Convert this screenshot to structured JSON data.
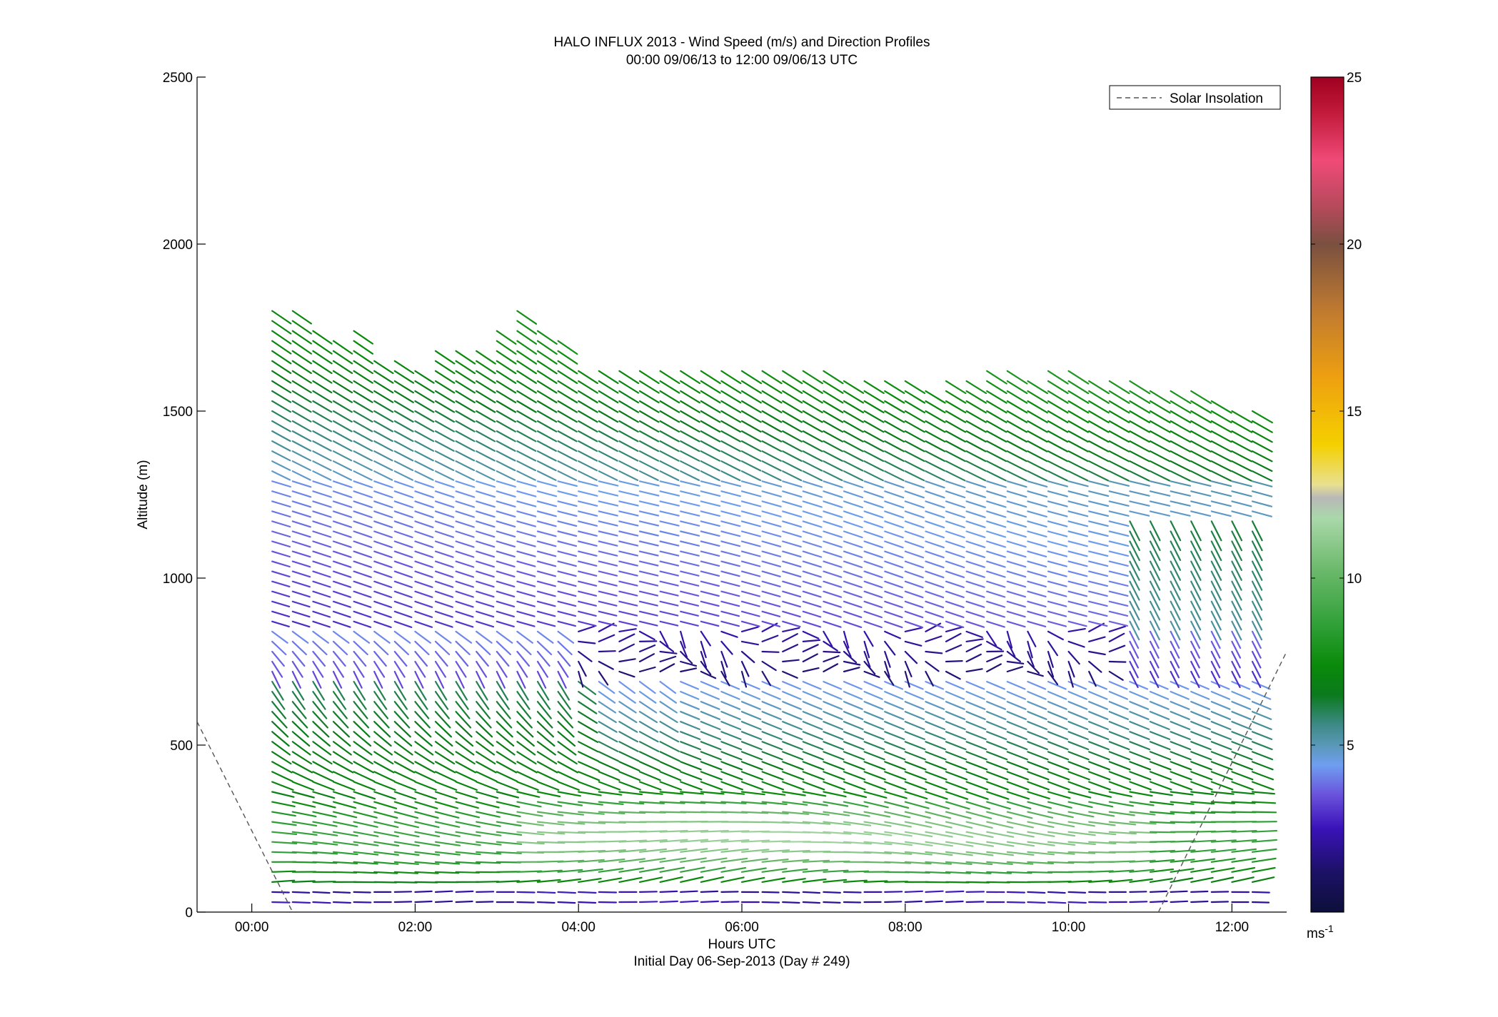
{
  "chart_data": {
    "type": "quiver",
    "title": "HALO INFLUX 2013 - Wind Speed (m/s) and Direction Profiles",
    "subtitle": "00:00 09/06/13 to 12:00 09/06/13  UTC",
    "xlabel": "Hours UTC",
    "xlabel2": "Initial Day 06-Sep-2013 (Day # 249)",
    "ylabel": "Altitude (m)",
    "xlim": [
      -0.67,
      12.67
    ],
    "ylim": [
      0,
      2500
    ],
    "x_ticks": [
      0,
      2,
      4,
      6,
      8,
      10,
      12
    ],
    "x_tick_labels": [
      "00:00",
      "02:00",
      "04:00",
      "06:00",
      "08:00",
      "10:00",
      "12:00"
    ],
    "y_ticks": [
      0,
      500,
      1000,
      1500,
      2000,
      2500
    ],
    "y_tick_labels": [
      "0",
      "500",
      "1000",
      "1500",
      "2000",
      "2500"
    ],
    "legend": {
      "entries": [
        "Solar Insolation"
      ],
      "placement": "top-right"
    },
    "solar_insolation": {
      "name": "Solar Insolation",
      "style": "dashed",
      "segments": [
        {
          "x": [
            -0.67,
            0.5
          ],
          "y": [
            570,
            0
          ]
        },
        {
          "x": [
            11.1,
            12.67
          ],
          "y": [
            0,
            780
          ]
        }
      ]
    },
    "colorbar": {
      "range": [
        0,
        25
      ],
      "ticks": [
        5,
        10,
        15,
        20,
        25
      ],
      "tick_labels": [
        "5",
        "10",
        "15",
        "20",
        "25"
      ],
      "units_label": "ms",
      "units_exponent": "-1",
      "stops": [
        {
          "v": 0,
          "color": "#0d0f3a"
        },
        {
          "v": 1.2,
          "color": "#1c1166"
        },
        {
          "v": 2.5,
          "color": "#3a12b8"
        },
        {
          "v": 3.5,
          "color": "#6a52dc"
        },
        {
          "v": 4.4,
          "color": "#6f9ef0"
        },
        {
          "v": 5.0,
          "color": "#5a98b6"
        },
        {
          "v": 5.6,
          "color": "#3d8a88"
        },
        {
          "v": 6.5,
          "color": "#0b7a1c"
        },
        {
          "v": 7.4,
          "color": "#0a8a0a"
        },
        {
          "v": 8.6,
          "color": "#30a038"
        },
        {
          "v": 10.2,
          "color": "#6ab86a"
        },
        {
          "v": 11.8,
          "color": "#aad8aa"
        },
        {
          "v": 12.4,
          "color": "#b8b8b8"
        },
        {
          "v": 12.8,
          "color": "#e8e090"
        },
        {
          "v": 14.0,
          "color": "#f5d000"
        },
        {
          "v": 16.0,
          "color": "#eea010"
        },
        {
          "v": 18.0,
          "color": "#c07a30"
        },
        {
          "v": 20.0,
          "color": "#7a5040"
        },
        {
          "v": 21.0,
          "color": "#b04a58"
        },
        {
          "v": 22.5,
          "color": "#f04a78"
        },
        {
          "v": 24.0,
          "color": "#c01838"
        },
        {
          "v": 25.0,
          "color": "#a00020"
        }
      ]
    },
    "profile_times_hours": [
      0.25,
      0.5,
      0.75,
      1.0,
      1.25,
      1.5,
      1.75,
      2.0,
      2.25,
      2.5,
      2.75,
      3.0,
      3.25,
      3.5,
      3.75,
      4.0,
      4.25,
      4.5,
      4.75,
      5.0,
      5.25,
      5.5,
      5.75,
      6.0,
      6.25,
      6.5,
      6.75,
      7.0,
      7.25,
      7.5,
      7.75,
      8.0,
      8.25,
      8.5,
      8.75,
      9.0,
      9.25,
      9.5,
      9.75,
      10.0,
      10.25,
      10.5,
      10.75,
      11.0,
      11.25,
      11.5,
      11.75,
      12.0,
      12.25
    ],
    "profile_top_altitudes_m": [
      1810,
      1810,
      1740,
      1720,
      1740,
      1650,
      1650,
      1640,
      1700,
      1690,
      1680,
      1740,
      1810,
      1740,
      1730,
      1640,
      1630,
      1640,
      1640,
      1640,
      1640,
      1630,
      1640,
      1630,
      1640,
      1630,
      1640,
      1620,
      1600,
      1590,
      1600,
      1590,
      1580,
      1590,
      1600,
      1640,
      1620,
      1590,
      1640,
      1630,
      1610,
      1600,
      1590,
      1580,
      1560,
      1570,
      1550,
      1520,
      1500
    ],
    "profile_bottom_altitude_m": 30,
    "profile_levels_step_m": 30
  }
}
